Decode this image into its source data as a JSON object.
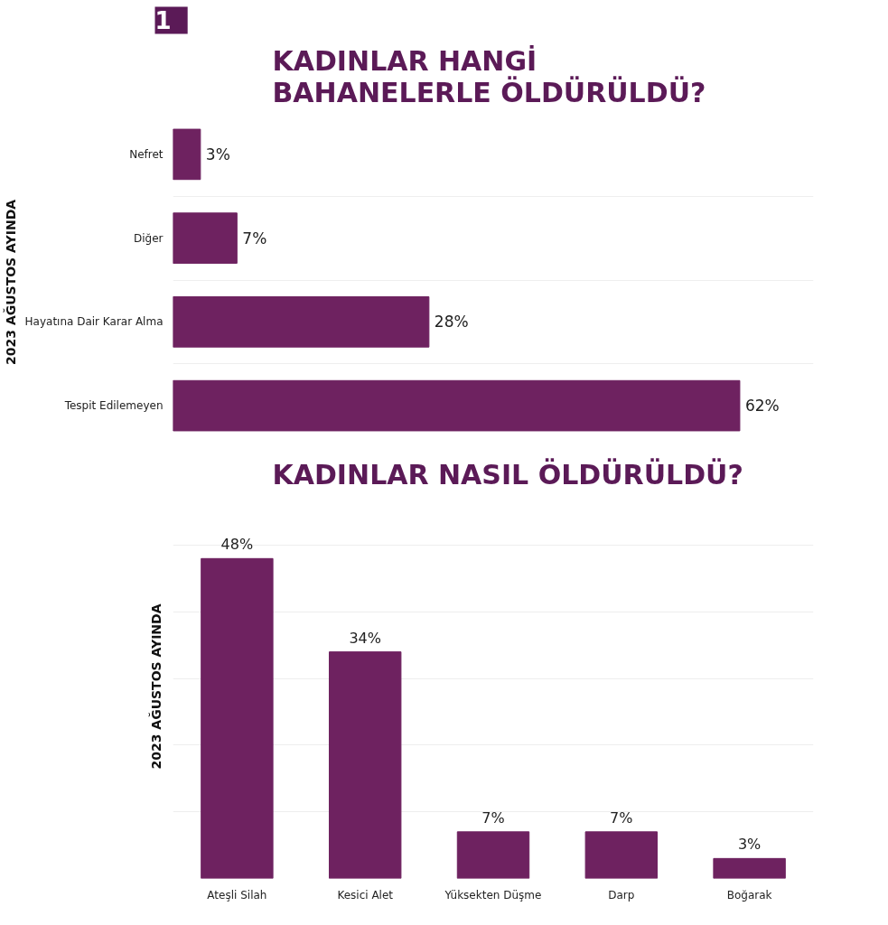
{
  "chart_data": [
    {
      "type": "bar",
      "orientation": "horizontal",
      "title": "KADINLAR HANGİ BAHANELERLE ÖLDÜRÜLDÜ?",
      "ylabel": "2023  AĞUSTOS AYINDA",
      "annotations": [
        "1"
      ],
      "categories": [
        "Nefret",
        "Diğer",
        "Hayatına Dair Karar Alma",
        "Tespit Edilemeyen"
      ],
      "values": [
        3,
        7,
        28,
        62
      ],
      "value_labels": [
        "3%",
        "7%",
        "28%",
        "62%"
      ],
      "color": "#6e2260",
      "grid": "y",
      "tick_labels": "y"
    },
    {
      "type": "bar",
      "title": "KADINLAR NASIL ÖLDÜRÜLDÜ?",
      "ylabel": "2023 AĞUSTOS AYINDA",
      "categories": [
        "Ateşli Silah",
        "Kesici Alet",
        "Yüksekten Düşme",
        "Darp",
        "Boğarak"
      ],
      "values": [
        48,
        34,
        7,
        7,
        3
      ],
      "value_labels": [
        "48%",
        "34%",
        "7%",
        "7%",
        "3%"
      ],
      "color": "#6e2260",
      "grid": "y",
      "tick_labels": "x"
    }
  ]
}
